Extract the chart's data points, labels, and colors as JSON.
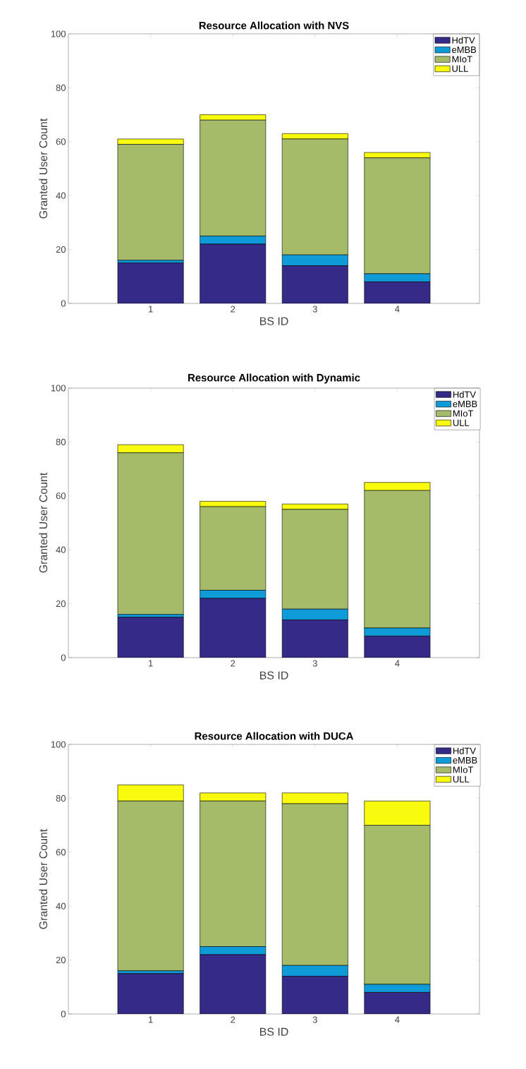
{
  "chart_data": [
    {
      "type": "bar",
      "title": "Resource Allocation with NVS",
      "xlabel": "BS ID",
      "ylabel": "Granted User Count",
      "categories": [
        "1",
        "2",
        "3",
        "4"
      ],
      "stacked": true,
      "ylim": [
        0,
        100
      ],
      "yticks": [
        0,
        20,
        40,
        60,
        80,
        100
      ],
      "legend": "top right",
      "series": [
        {
          "name": "HdTV",
          "color": "#352a87",
          "values": [
            15,
            22,
            14,
            8
          ]
        },
        {
          "name": "eMBB",
          "color": "#0f9bd7",
          "values": [
            1,
            3,
            4,
            3
          ]
        },
        {
          "name": "MIoT",
          "color": "#a5bb6a",
          "values": [
            43,
            43,
            43,
            43
          ]
        },
        {
          "name": "ULL",
          "color": "#f9fb0e",
          "values": [
            2,
            2,
            2,
            2
          ]
        }
      ]
    },
    {
      "type": "bar",
      "title": "Resource Allocation with Dynamic",
      "xlabel": "BS ID",
      "ylabel": "Granted User Count",
      "categories": [
        "1",
        "2",
        "3",
        "4"
      ],
      "stacked": true,
      "ylim": [
        0,
        100
      ],
      "yticks": [
        0,
        20,
        40,
        60,
        80,
        100
      ],
      "legend": "top right",
      "series": [
        {
          "name": "HdTV",
          "color": "#352a87",
          "values": [
            15,
            22,
            14,
            8
          ]
        },
        {
          "name": "eMBB",
          "color": "#0f9bd7",
          "values": [
            1,
            3,
            4,
            3
          ]
        },
        {
          "name": "MIoT",
          "color": "#a5bb6a",
          "values": [
            60,
            31,
            37,
            51
          ]
        },
        {
          "name": "ULL",
          "color": "#f9fb0e",
          "values": [
            3,
            2,
            2,
            3
          ]
        }
      ]
    },
    {
      "type": "bar",
      "title": "Resource Allocation with DUCA",
      "xlabel": "BS ID",
      "ylabel": "Granted User Count",
      "categories": [
        "1",
        "2",
        "3",
        "4"
      ],
      "stacked": true,
      "ylim": [
        0,
        100
      ],
      "yticks": [
        0,
        20,
        40,
        60,
        80,
        100
      ],
      "legend": "top right",
      "series": [
        {
          "name": "HdTV",
          "color": "#352a87",
          "values": [
            15,
            22,
            14,
            8
          ]
        },
        {
          "name": "eMBB",
          "color": "#0f9bd7",
          "values": [
            1,
            3,
            4,
            3
          ]
        },
        {
          "name": "MIoT",
          "color": "#a5bb6a",
          "values": [
            63,
            54,
            60,
            59
          ]
        },
        {
          "name": "ULL",
          "color": "#f9fb0e",
          "values": [
            6,
            3,
            4,
            9
          ]
        }
      ]
    }
  ]
}
